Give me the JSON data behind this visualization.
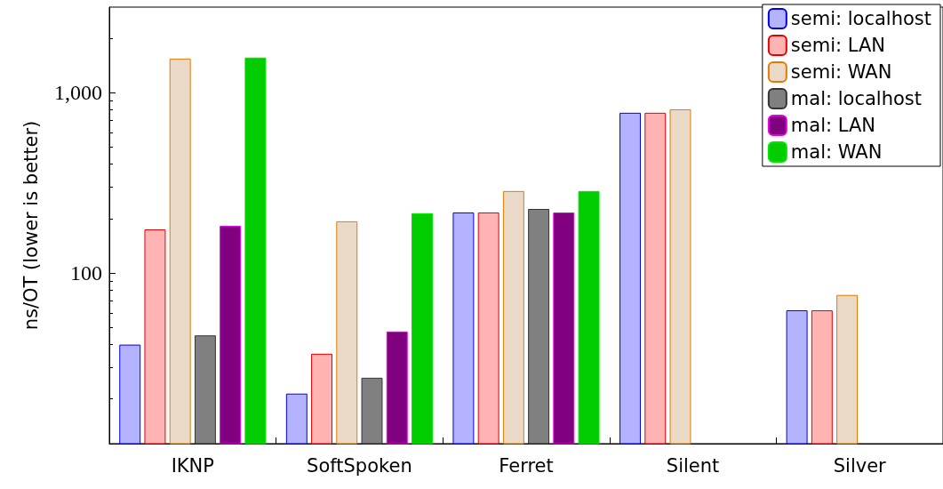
{
  "chart_data": {
    "type": "bar",
    "ylabel": "ns/OT (lower is better)",
    "categories": [
      "IKNP",
      "SoftSpoken",
      "Ferret",
      "Silent",
      "Silver"
    ],
    "series": [
      {
        "name": "semi: localhost",
        "color": "#b3b3ff",
        "values": [
          40,
          21.4,
          216,
          771,
          62
        ]
      },
      {
        "name": "semi: LAN",
        "color": "#ffb3b3",
        "values": [
          174,
          35.6,
          216,
          771,
          62
        ]
      },
      {
        "name": "semi: WAN",
        "color": "#ead9c6",
        "values": [
          1540,
          193,
          284,
          806,
          75.4
        ]
      },
      {
        "name": "mal: localhost",
        "color": "#808080",
        "values": [
          45,
          26.2,
          226,
          null,
          null
        ]
      },
      {
        "name": "mal: LAN",
        "color": "#800080",
        "values": [
          182,
          47.3,
          216,
          null,
          null
        ]
      },
      {
        "name": "mal: WAN",
        "color": "#00cc00",
        "values": [
          1560,
          214,
          284,
          null,
          null
        ]
      }
    ],
    "log": true,
    "ylim": [
      11.3,
      2970
    ],
    "yticks": [
      100,
      {
        "value": 1000,
        "label": "1,000"
      }
    ],
    "grid": false,
    "legend": "top right"
  }
}
